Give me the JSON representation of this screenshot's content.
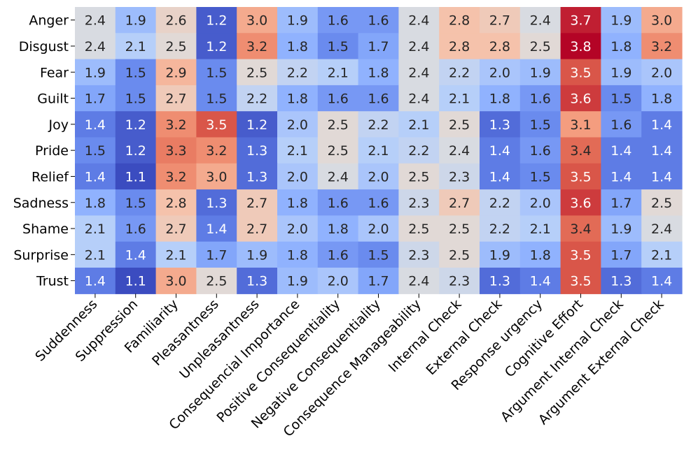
{
  "chart_data": {
    "type": "heatmap",
    "title": "",
    "xlabel": "",
    "ylabel": "",
    "colormap": "coolwarm",
    "vmin": 1.1,
    "vmax": 3.8,
    "rows": [
      "Anger",
      "Disgust",
      "Fear",
      "Guilt",
      "Joy",
      "Pride",
      "Relief",
      "Sadness",
      "Shame",
      "Surprise",
      "Trust"
    ],
    "columns": [
      "Suddenness",
      "Suppression",
      "Familiarity",
      "Pleasantness",
      "Unpleasantness",
      "Consequencial Importance",
      "Positive Consequentiality",
      "Negative Consequentiality",
      "Consequence Manageability",
      "Internal Check",
      "External Check",
      "Response urgency",
      "Cognitive Effort",
      "Argument Internal Check",
      "Argument External Check"
    ],
    "values": [
      [
        2.4,
        1.9,
        2.6,
        1.2,
        3.0,
        1.9,
        1.6,
        1.6,
        2.4,
        2.8,
        2.7,
        2.4,
        3.7,
        1.9,
        3.0
      ],
      [
        2.4,
        2.1,
        2.5,
        1.2,
        3.2,
        1.8,
        1.5,
        1.7,
        2.4,
        2.8,
        2.8,
        2.5,
        3.8,
        1.8,
        3.2
      ],
      [
        1.9,
        1.5,
        2.9,
        1.5,
        2.5,
        2.2,
        2.1,
        1.8,
        2.4,
        2.2,
        2.0,
        1.9,
        3.5,
        1.9,
        2.0
      ],
      [
        1.7,
        1.5,
        2.7,
        1.5,
        2.2,
        1.8,
        1.6,
        1.6,
        2.4,
        2.1,
        1.8,
        1.6,
        3.6,
        1.5,
        1.8
      ],
      [
        1.4,
        1.2,
        3.2,
        3.5,
        1.2,
        2.0,
        2.5,
        2.2,
        2.1,
        2.5,
        1.3,
        1.5,
        3.1,
        1.6,
        1.4
      ],
      [
        1.5,
        1.2,
        3.3,
        3.2,
        1.3,
        2.1,
        2.5,
        2.1,
        2.2,
        2.4,
        1.4,
        1.6,
        3.4,
        1.4,
        1.4
      ],
      [
        1.4,
        1.1,
        3.2,
        3.0,
        1.3,
        2.0,
        2.4,
        2.0,
        2.5,
        2.3,
        1.4,
        1.5,
        3.5,
        1.4,
        1.4
      ],
      [
        1.8,
        1.5,
        2.8,
        1.3,
        2.7,
        1.8,
        1.6,
        1.6,
        2.3,
        2.7,
        2.2,
        2.0,
        3.6,
        1.7,
        2.5
      ],
      [
        2.1,
        1.6,
        2.7,
        1.4,
        2.7,
        2.0,
        1.8,
        2.0,
        2.5,
        2.5,
        2.2,
        2.1,
        3.4,
        1.9,
        2.4
      ],
      [
        2.1,
        1.4,
        2.1,
        1.7,
        1.9,
        1.8,
        1.6,
        1.5,
        2.3,
        2.5,
        1.9,
        1.8,
        3.5,
        1.7,
        2.1
      ],
      [
        1.4,
        1.1,
        3.0,
        2.5,
        1.3,
        1.9,
        2.0,
        1.7,
        2.4,
        2.3,
        1.3,
        1.4,
        3.5,
        1.3,
        1.4
      ]
    ]
  }
}
